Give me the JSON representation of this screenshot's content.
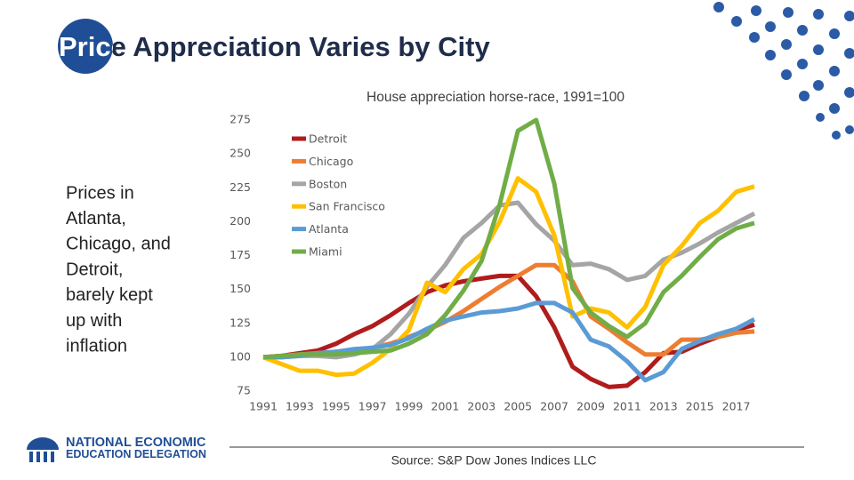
{
  "title": "Price Appreciation Varies by City",
  "sidebar": {
    "lines": [
      "Prices in",
      "Atlanta,",
      "Chicago, and",
      "Detroit,",
      "barely kept",
      "up with",
      "inflation"
    ]
  },
  "logo": {
    "lines": [
      "NATIONAL ECONOMIC",
      "EDUCATION DELEGATION"
    ]
  },
  "source": "Source: S&P Dow Jones Indices LLC",
  "chart_data": {
    "type": "line",
    "title": "House appreciation horse-race, 1991=100",
    "x": [
      1991,
      1992,
      1993,
      1994,
      1995,
      1996,
      1997,
      1998,
      1999,
      2000,
      2001,
      2002,
      2003,
      2004,
      2005,
      2006,
      2007,
      2008,
      2009,
      2010,
      2011,
      2012,
      2013,
      2014,
      2015,
      2016,
      2017,
      2018
    ],
    "xlim": [
      1991,
      2018
    ],
    "xticks": [
      1991,
      1993,
      1995,
      1997,
      1999,
      2001,
      2003,
      2005,
      2007,
      2009,
      2011,
      2013,
      2015,
      2017
    ],
    "ylim": [
      75,
      275
    ],
    "yticks": [
      75,
      100,
      125,
      150,
      175,
      200,
      225,
      250,
      275
    ],
    "grid": false,
    "legend": "upper left",
    "series": [
      {
        "name": "Detroit",
        "color": "#b01c1c",
        "values": [
          100,
          101,
          103,
          105,
          110,
          117,
          123,
          131,
          140,
          148,
          153,
          156,
          158,
          160,
          160,
          145,
          122,
          93,
          84,
          78,
          79,
          89,
          103,
          104,
          110,
          115,
          120,
          124
        ]
      },
      {
        "name": "Chicago",
        "color": "#ed7d31",
        "values": [
          100,
          101,
          102,
          103,
          104,
          105,
          107,
          110,
          115,
          120,
          126,
          134,
          143,
          152,
          160,
          168,
          168,
          156,
          130,
          121,
          111,
          102,
          102,
          113,
          113,
          115,
          118,
          119
        ]
      },
      {
        "name": "Boston",
        "color": "#a5a5a5",
        "values": [
          100,
          100,
          101,
          101,
          100,
          102,
          106,
          117,
          132,
          152,
          168,
          188,
          199,
          212,
          214,
          198,
          186,
          168,
          169,
          165,
          157,
          160,
          172,
          177,
          184,
          192,
          199,
          206
        ]
      },
      {
        "name": "San Francisco",
        "color": "#ffc000",
        "values": [
          100,
          95,
          90,
          90,
          87,
          88,
          96,
          106,
          120,
          155,
          148,
          165,
          176,
          200,
          232,
          222,
          190,
          130,
          136,
          133,
          122,
          137,
          168,
          182,
          199,
          208,
          222,
          226
        ]
      },
      {
        "name": "Atlanta",
        "color": "#5b9bd5",
        "values": [
          100,
          100,
          101,
          103,
          104,
          106,
          107,
          109,
          114,
          121,
          127,
          130,
          133,
          134,
          136,
          140,
          140,
          133,
          113,
          108,
          97,
          83,
          89,
          106,
          112,
          117,
          121,
          128
        ]
      },
      {
        "name": "Miami",
        "color": "#70ad47",
        "values": [
          100,
          101,
          102,
          102,
          102,
          103,
          104,
          105,
          110,
          117,
          131,
          149,
          171,
          213,
          267,
          275,
          228,
          151,
          133,
          123,
          115,
          125,
          148,
          160,
          174,
          187,
          195,
          199
        ]
      }
    ]
  }
}
